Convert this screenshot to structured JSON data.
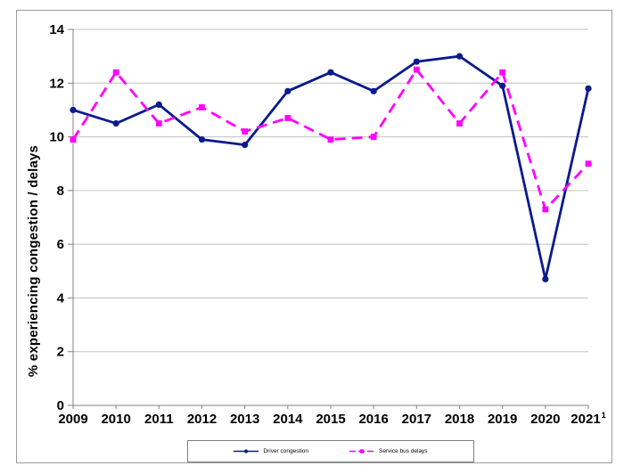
{
  "chart_data": {
    "type": "line",
    "title": "",
    "ylabel": "% experiencing congestion / delays",
    "xlabel": "",
    "categories": [
      "2009",
      "2010",
      "2011",
      "2012",
      "2013",
      "2014",
      "2015",
      "2016",
      "2017",
      "2018",
      "2019",
      "2020",
      "2021"
    ],
    "footnote_superscript": "1",
    "ylim": [
      0,
      14
    ],
    "yticks": [
      0,
      2,
      4,
      6,
      8,
      10,
      12,
      14
    ],
    "grid": true,
    "legend_position": "bottom",
    "series": [
      {
        "name": "Driver congestion",
        "color": "#0B1A8C",
        "line_style": "solid",
        "marker": "circle",
        "values": [
          11.0,
          10.5,
          11.2,
          9.9,
          9.7,
          11.7,
          12.4,
          11.7,
          12.8,
          13.0,
          11.9,
          4.7,
          11.8
        ]
      },
      {
        "name": "Service bus delays",
        "color": "#FF00FF",
        "line_style": "dashed",
        "marker": "square",
        "values": [
          9.9,
          12.4,
          10.5,
          11.1,
          10.2,
          10.7,
          9.9,
          10.0,
          12.5,
          10.5,
          12.4,
          7.3,
          9.0
        ]
      }
    ],
    "colors": {
      "axis": "#808080",
      "gridline": "#C0C0C0",
      "frame": "#9C9C9C",
      "text": "#000000",
      "background": "#FFFFFF"
    }
  }
}
